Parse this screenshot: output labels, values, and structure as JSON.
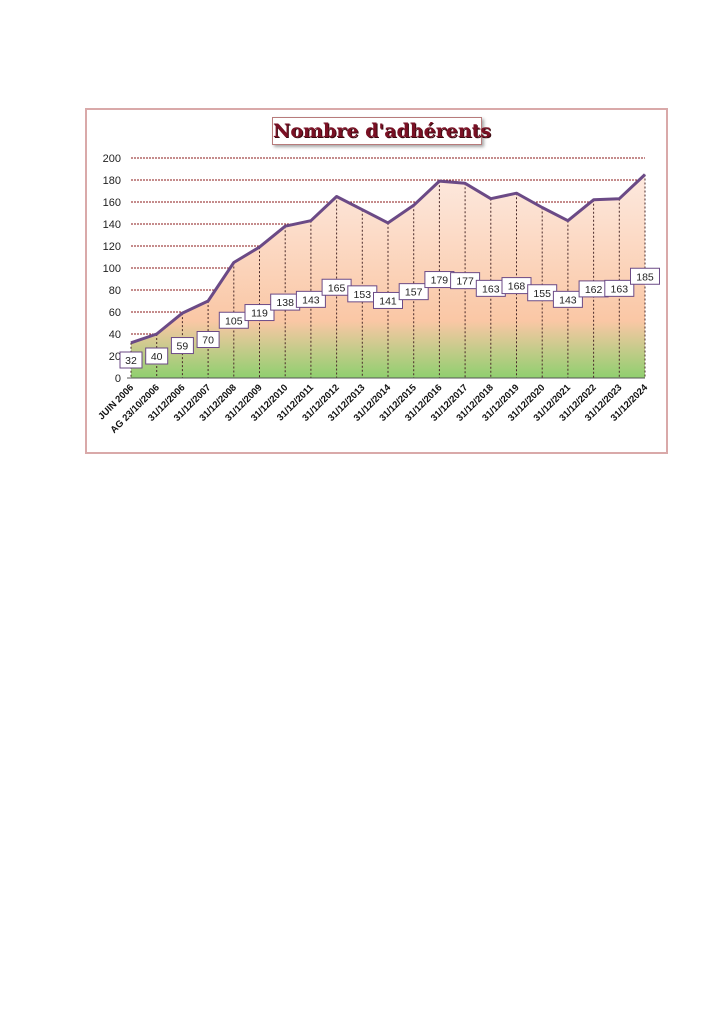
{
  "chart_data": {
    "type": "area",
    "title": "Nombre d'adhérents",
    "xlabel": "",
    "ylabel": "",
    "categories": [
      "JUIN 2006",
      "AG 23/10/2006",
      "31/12/2006",
      "31/12/2007",
      "31/12/2008",
      "31/12/2009",
      "31/12/2010",
      "31/12/2011",
      "31/12/2012",
      "31/12/2013",
      "31/12/2014",
      "31/12/2015",
      "31/12/2016",
      "31/12/2017",
      "31/12/2018",
      "31/12/2019",
      "31/12/2020",
      "31/12/2021",
      "31/12/2022",
      "31/12/2023",
      "31/12/2024"
    ],
    "values": [
      32,
      40,
      59,
      70,
      105,
      119,
      138,
      143,
      165,
      153,
      141,
      157,
      179,
      177,
      163,
      168,
      155,
      143,
      162,
      163,
      185
    ],
    "ylim": [
      0,
      200
    ],
    "yticks": [
      0,
      20,
      40,
      60,
      80,
      100,
      120,
      140,
      160,
      180,
      200
    ],
    "grid": true,
    "legend": "none",
    "colors": {
      "line": "#6b4a86",
      "gridline": "#8b1a1a",
      "fill_top": "#fde9df",
      "fill_mid": "#fac7a5",
      "fill_bottom": "#8fcf6f",
      "label_border": "#6b4a86"
    }
  }
}
